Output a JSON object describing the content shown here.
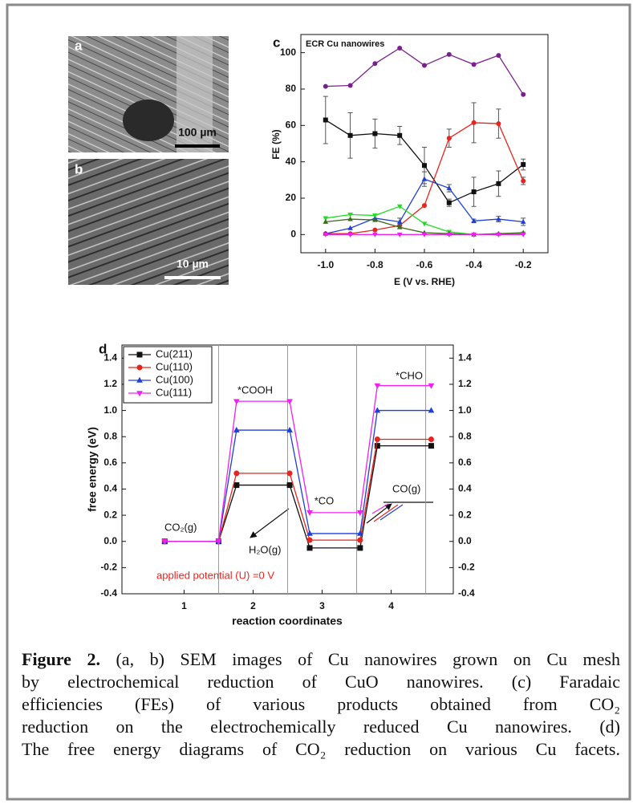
{
  "panels": [
    {
      "label": "a",
      "scale_bar": "100 µm"
    },
    {
      "label": "b",
      "scale_bar": "10 µm"
    }
  ],
  "chart_data": [
    {
      "type": "line",
      "panel_label": "c",
      "title": "ECR Cu nanowires",
      "x_label": "E (V vs. RHE)",
      "y_label": "FE (%)",
      "x": [
        -1.0,
        -0.9,
        -0.8,
        -0.7,
        -0.6,
        -0.5,
        -0.4,
        -0.3,
        -0.2
      ],
      "xlim": [
        -1.1,
        -0.1
      ],
      "xticks": [
        {
          "value": -1,
          "label": "-1.0"
        },
        -0.8,
        -0.6,
        -0.4,
        -0.2
      ],
      "ylim": [
        -10,
        110
      ],
      "yticks": [
        0,
        20,
        40,
        60,
        80,
        100
      ],
      "series": [
        {
          "color": "#7b1f8f",
          "marker": "circle",
          "values": [
            81.5,
            82,
            94,
            102.5,
            93,
            99,
            93.5,
            98.5,
            77
          ]
        },
        {
          "color": "#111111",
          "marker": "square",
          "values": [
            63,
            54.5,
            55.5,
            54.5,
            38,
            17.5,
            23.5,
            28,
            38.5
          ],
          "errors": [
            13,
            12.5,
            8,
            5,
            10,
            2,
            8,
            7,
            3
          ]
        },
        {
          "color": "#e8241e",
          "marker": "circle",
          "values": [
            0.5,
            0.5,
            2.5,
            5,
            16,
            53,
            61.5,
            61,
            29.5
          ],
          "errors": [
            0,
            0,
            0,
            0,
            0,
            5,
            11,
            8,
            2
          ]
        },
        {
          "color": "#1f3fd6",
          "marker": "triangle",
          "values": [
            0.5,
            3.5,
            9,
            7,
            30.5,
            25.5,
            7.5,
            8.5,
            7
          ],
          "errors": [
            0,
            0,
            0,
            2,
            4,
            2,
            1,
            1.5,
            2
          ]
        },
        {
          "color": "#22dd22",
          "marker": "triangle-down",
          "values": [
            9,
            11,
            10.5,
            15.5,
            6,
            1.5,
            0,
            0,
            0.5
          ]
        },
        {
          "color": "#3d6b1f",
          "marker": "triangle",
          "values": [
            7,
            8.5,
            8,
            4,
            1,
            0.5,
            0,
            0.5,
            1
          ]
        },
        {
          "color": "#ee22ee",
          "marker": "triangle-down",
          "values": [
            0,
            0,
            0,
            0,
            0,
            0,
            0,
            0,
            0
          ]
        }
      ]
    },
    {
      "type": "line",
      "panel_label": "d",
      "x_label": "reaction coordinates",
      "y_label": "free energy (eV)",
      "x": [
        0.72,
        1.5,
        1.76,
        2.53,
        2.82,
        3.55,
        3.8,
        4.58
      ],
      "xlim": [
        0.1,
        4.9
      ],
      "xticks": [
        1,
        2,
        3,
        4
      ],
      "separators": [
        1.5,
        2.5,
        3.5,
        4.5
      ],
      "ylim": [
        -0.4,
        1.5
      ],
      "yticks": [
        -0.4,
        -0.2,
        {
          "value": 0,
          "label": "0.0"
        },
        0.2,
        0.4,
        0.6,
        0.8,
        {
          "value": 1,
          "label": "1.0"
        },
        1.2,
        1.4
      ],
      "y2lim": [
        -0.4,
        1.5
      ],
      "y2ticks": [
        -0.4,
        -0.2,
        {
          "value": 0,
          "label": "0.0"
        },
        0.2,
        0.4,
        0.6,
        0.8,
        {
          "value": 1,
          "label": "1.0"
        },
        1.2,
        1.4
      ],
      "legend": "upper left",
      "series": [
        {
          "name": "Cu(211)",
          "color": "#111111",
          "marker": "square",
          "values": [
            0,
            0,
            0.43,
            0.43,
            -0.05,
            -0.05,
            0.73,
            0.73
          ]
        },
        {
          "name": "Cu(110)",
          "color": "#e8241e",
          "marker": "circle",
          "values": [
            0,
            0,
            0.52,
            0.52,
            0.01,
            0.01,
            0.78,
            0.78
          ]
        },
        {
          "name": "Cu(100)",
          "color": "#1f3fd6",
          "marker": "triangle",
          "values": [
            0,
            0,
            0.85,
            0.85,
            0.06,
            0.06,
            1.0,
            1.0
          ]
        },
        {
          "name": "Cu(111)",
          "color": "#ee22ee",
          "marker": "triangle-down",
          "values": [
            0,
            0,
            1.07,
            1.07,
            0.22,
            0.22,
            1.19,
            1.19
          ]
        }
      ],
      "annotations": [
        "CO₂(g)",
        "*COOH",
        "*CO",
        "H₂O(g)",
        "*CHO",
        "CO(g)",
        "applied potential (U) =0 V"
      ]
    }
  ],
  "caption": {
    "label": "Figure 2.",
    "lines": [
      "(a, b) SEM images of Cu nanowires grown on Cu mesh",
      "by electrochemical reduction of CuO nanowires. (c) Faradaic",
      "efficiencies (FEs) of various products obtained from CO₂",
      "reduction on the electrochemically reduced Cu nanowires. (d)",
      "The free energy diagrams of CO₂ reduction on various Cu facets."
    ]
  }
}
